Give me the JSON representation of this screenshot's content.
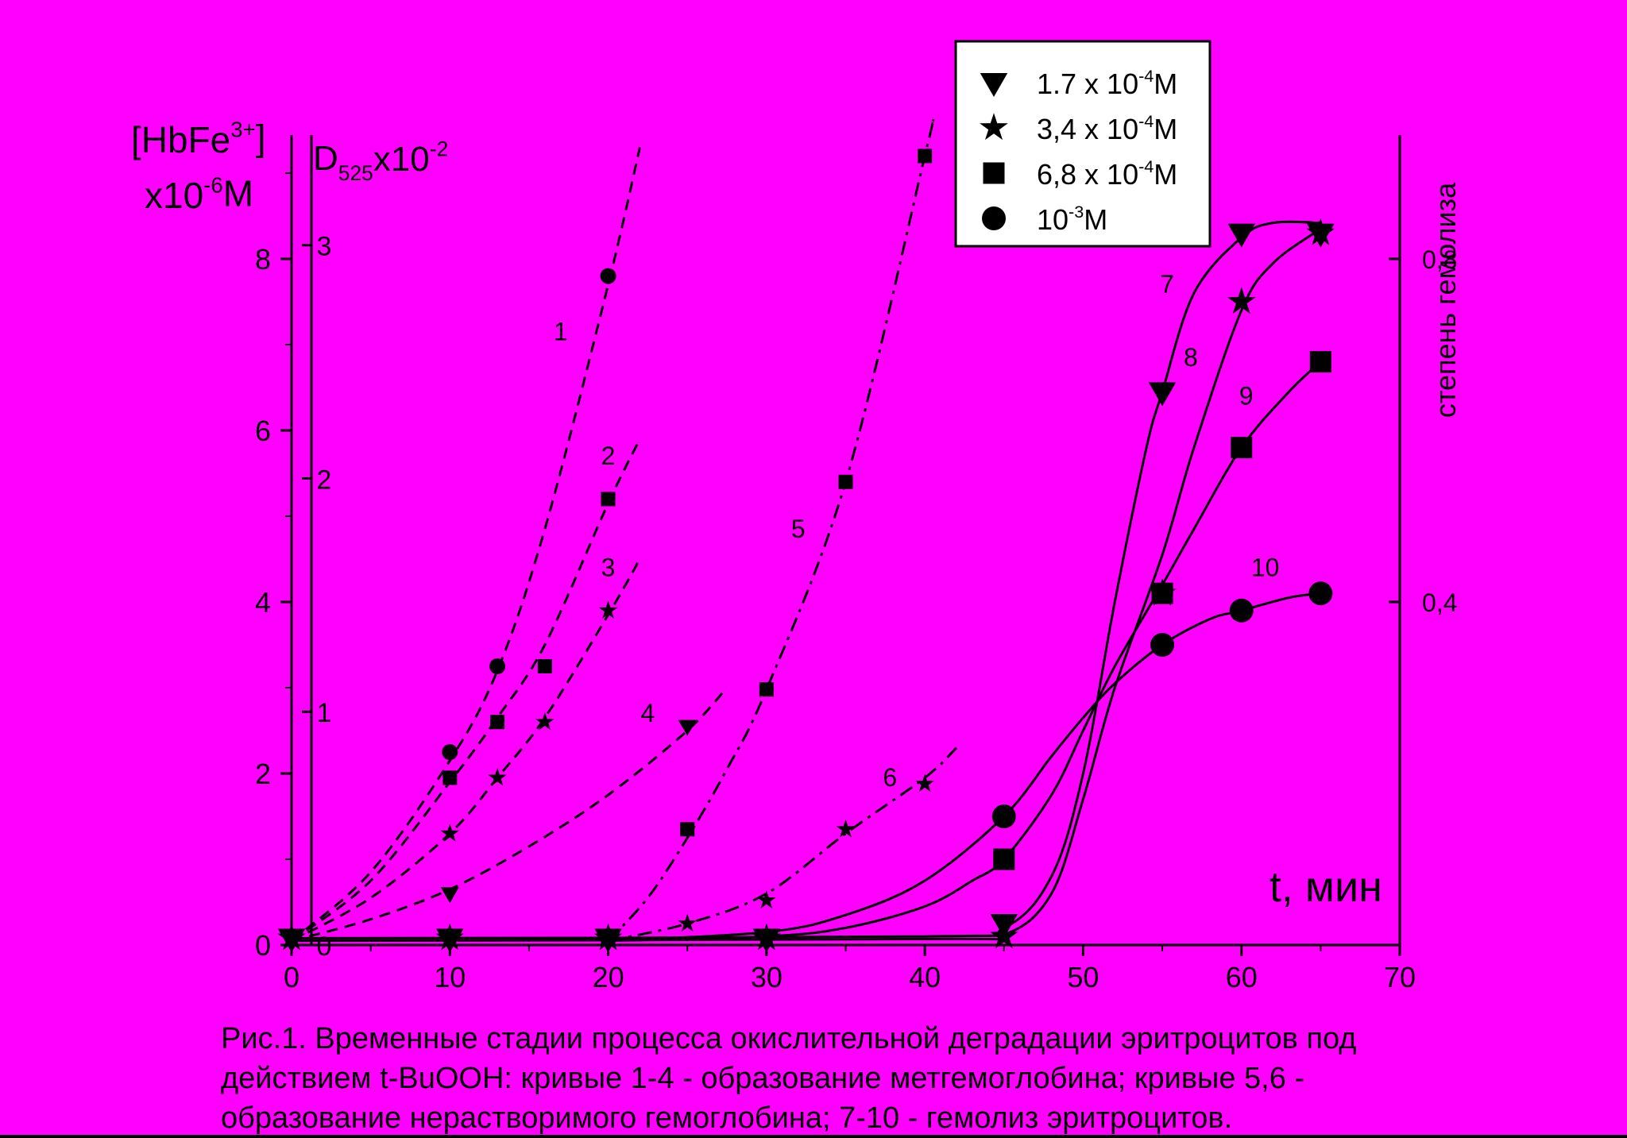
{
  "caption": [
    "Рис.1. Временные стадии процесса окислительной деградации эритроцитов под",
    "действием t-BuOOH: кривые 1-4 - образование метгемоглобина; кривые 5,6 -",
    "образование нерастворимого гемоглобина; 7-10 - гемолиз эритроцитов."
  ],
  "chart_data": {
    "type": "scatter",
    "xlabel": "t, мин",
    "xlim": [
      0,
      70
    ],
    "x_ticks": [
      0,
      10,
      20,
      30,
      40,
      50,
      60,
      70
    ],
    "y_axes": {
      "left": {
        "label_main": "[HbFe",
        "label_sup": "3+",
        "label_close": "]",
        "label2_main": "x10",
        "label2_sup": "-6",
        "label2_tail": "M",
        "ylim": [
          0,
          9.5
        ],
        "ticks": [
          0,
          2,
          4,
          6,
          8
        ]
      },
      "inner": {
        "label_main": "D",
        "label_sub": "525",
        "label_mid": "x10",
        "label_sup": "-2",
        "ticks": [
          {
            "v": 0,
            "label": "0"
          },
          {
            "v": 1,
            "label": "1"
          },
          {
            "v": 2,
            "label": "2"
          },
          {
            "v": 3,
            "label": "3"
          }
        ],
        "scale_to_left": 2.72
      },
      "right": {
        "label": "степень гемолиза",
        "ticks": [
          {
            "v": 0.4,
            "label": "0,4"
          },
          {
            "v": 0.8,
            "label": "0,8"
          }
        ],
        "scale_to_left": 10
      }
    },
    "legend": {
      "placement": "top-right",
      "entries": [
        {
          "marker": "triangle-down",
          "main": "1.7 x 10",
          "sup": "-4",
          "tail": "M"
        },
        {
          "marker": "star",
          "main": "3,4 x 10",
          "sup": "-4",
          "tail": "M"
        },
        {
          "marker": "square",
          "main": "6,8 x 10",
          "sup": "-4",
          "tail": "M"
        },
        {
          "marker": "circle",
          "main": "10",
          "sup": "-3",
          "tail": "M"
        }
      ]
    },
    "series": [
      {
        "name": "1",
        "marker": "circle",
        "size": "small",
        "style": "dash",
        "points": [
          [
            0,
            0.1
          ],
          [
            10,
            2.25
          ],
          [
            13,
            3.25
          ],
          [
            20,
            7.8
          ]
        ],
        "curve": [
          [
            0,
            0.05
          ],
          [
            5,
            0.85
          ],
          [
            10,
            2.15
          ],
          [
            13,
            3.2
          ],
          [
            16,
            4.85
          ],
          [
            20,
            7.7
          ],
          [
            22,
            9.3
          ]
        ],
        "label": "1",
        "label_at": [
          17,
          7.05
        ]
      },
      {
        "name": "2",
        "marker": "square",
        "size": "small",
        "style": "dash",
        "points": [
          [
            10,
            1.95
          ],
          [
            13,
            2.6
          ],
          [
            16,
            3.25
          ],
          [
            20,
            5.2
          ]
        ],
        "curve": [
          [
            0,
            0.05
          ],
          [
            5,
            0.75
          ],
          [
            10,
            1.9
          ],
          [
            13,
            2.65
          ],
          [
            16,
            3.5
          ],
          [
            20,
            5.15
          ],
          [
            22,
            5.9
          ]
        ],
        "label": "2",
        "label_at": [
          20,
          5.6
        ]
      },
      {
        "name": "3",
        "marker": "star",
        "size": "small",
        "style": "dash",
        "points": [
          [
            10,
            1.3
          ],
          [
            13,
            1.95
          ],
          [
            16,
            2.6
          ],
          [
            20,
            3.9
          ]
        ],
        "curve": [
          [
            0,
            0.05
          ],
          [
            5,
            0.55
          ],
          [
            10,
            1.3
          ],
          [
            13,
            1.95
          ],
          [
            16,
            2.65
          ],
          [
            20,
            3.85
          ],
          [
            22,
            4.5
          ]
        ],
        "label": "3",
        "label_at": [
          20,
          4.3
        ]
      },
      {
        "name": "4",
        "marker": "triangle-down",
        "size": "small",
        "style": "dash",
        "points": [
          [
            10,
            0.6
          ],
          [
            25,
            2.55
          ]
        ],
        "curve": [
          [
            0,
            0.05
          ],
          [
            5,
            0.3
          ],
          [
            10,
            0.65
          ],
          [
            15,
            1.15
          ],
          [
            20,
            1.75
          ],
          [
            25,
            2.5
          ],
          [
            27.5,
            3.0
          ]
        ],
        "label": "4",
        "label_at": [
          22.5,
          2.6
        ]
      },
      {
        "name": "5",
        "marker": "square",
        "size": "small",
        "style": "dashdot",
        "points": [
          [
            20,
            0.08
          ],
          [
            25,
            1.35
          ],
          [
            30,
            2.98
          ],
          [
            35,
            5.4
          ],
          [
            40,
            9.2
          ]
        ],
        "curve": [
          [
            20,
            0.05
          ],
          [
            22.5,
            0.55
          ],
          [
            25,
            1.25
          ],
          [
            27.5,
            2.05
          ],
          [
            30,
            2.98
          ],
          [
            35,
            5.4
          ],
          [
            40,
            9.2
          ],
          [
            40.5,
            9.6
          ]
        ],
        "label": "5",
        "label_at": [
          32,
          4.75
        ]
      },
      {
        "name": "6",
        "marker": "star",
        "size": "small",
        "style": "dashdot",
        "points": [
          [
            25,
            0.25
          ],
          [
            30,
            0.52
          ],
          [
            35,
            1.35
          ],
          [
            40,
            1.88
          ]
        ],
        "curve": [
          [
            20,
            0.05
          ],
          [
            25,
            0.25
          ],
          [
            30,
            0.6
          ],
          [
            35,
            1.3
          ],
          [
            40,
            1.95
          ],
          [
            42,
            2.3
          ]
        ],
        "label": "6",
        "label_at": [
          37.8,
          1.85
        ]
      },
      {
        "name": "7",
        "marker": "triangle-down",
        "size": "large",
        "style": "solid",
        "points": [
          [
            0,
            0.08
          ],
          [
            10,
            0.08
          ],
          [
            20,
            0.08
          ],
          [
            30,
            0.08
          ],
          [
            45,
            0.25
          ],
          [
            55,
            6.45
          ],
          [
            60,
            8.3
          ],
          [
            65,
            8.3
          ]
        ],
        "curve": [
          [
            0,
            0.08
          ],
          [
            40,
            0.1
          ],
          [
            45,
            0.2
          ],
          [
            48,
            0.8
          ],
          [
            50,
            2.0
          ],
          [
            52,
            4.0
          ],
          [
            54,
            5.8
          ],
          [
            55,
            6.45
          ],
          [
            57,
            7.6
          ],
          [
            60,
            8.25
          ],
          [
            62,
            8.42
          ],
          [
            65,
            8.42
          ]
        ],
        "label": "7",
        "label_at": [
          55.3,
          7.6
        ]
      },
      {
        "name": "8",
        "marker": "star",
        "size": "large",
        "style": "solid",
        "points": [
          [
            0,
            0.08
          ],
          [
            10,
            0.08
          ],
          [
            20,
            0.08
          ],
          [
            30,
            0.08
          ],
          [
            45,
            0.1
          ],
          [
            55,
            4.1
          ],
          [
            60,
            7.5
          ],
          [
            65,
            8.3
          ]
        ],
        "curve": [
          [
            0,
            0.05
          ],
          [
            40,
            0.07
          ],
          [
            45,
            0.12
          ],
          [
            48,
            0.6
          ],
          [
            50,
            1.7
          ],
          [
            52,
            3.0
          ],
          [
            55,
            4.55
          ],
          [
            57,
            5.8
          ],
          [
            60,
            7.4
          ],
          [
            62,
            7.95
          ],
          [
            65,
            8.35
          ]
        ],
        "label": "8",
        "label_at": [
          56.8,
          6.75
        ]
      },
      {
        "name": "9",
        "marker": "square",
        "size": "large",
        "style": "solid",
        "points": [
          [
            45,
            1.0
          ],
          [
            55,
            4.1
          ],
          [
            60,
            5.8
          ],
          [
            65,
            6.8
          ]
        ],
        "curve": [
          [
            20,
            0.05
          ],
          [
            30,
            0.1
          ],
          [
            35,
            0.2
          ],
          [
            40,
            0.45
          ],
          [
            43,
            0.75
          ],
          [
            45,
            1.0
          ],
          [
            48,
            1.75
          ],
          [
            50,
            2.5
          ],
          [
            52,
            3.25
          ],
          [
            55,
            4.2
          ],
          [
            57,
            4.85
          ],
          [
            60,
            5.8
          ],
          [
            63,
            6.45
          ],
          [
            65,
            6.8
          ]
        ],
        "label": "9",
        "label_at": [
          60.3,
          6.3
        ]
      },
      {
        "name": "10",
        "marker": "circle",
        "size": "large",
        "style": "solid",
        "points": [
          [
            45,
            1.5
          ],
          [
            55,
            3.5
          ],
          [
            60,
            3.9
          ],
          [
            65,
            4.1
          ]
        ],
        "curve": [
          [
            20,
            0.05
          ],
          [
            30,
            0.15
          ],
          [
            35,
            0.35
          ],
          [
            40,
            0.75
          ],
          [
            45,
            1.5
          ],
          [
            48,
            2.2
          ],
          [
            50,
            2.65
          ],
          [
            52,
            3.05
          ],
          [
            55,
            3.5
          ],
          [
            58,
            3.8
          ],
          [
            60,
            3.9
          ],
          [
            63,
            4.05
          ],
          [
            65,
            4.1
          ]
        ],
        "label": "10",
        "label_at": [
          61.5,
          4.3
        ]
      }
    ]
  }
}
